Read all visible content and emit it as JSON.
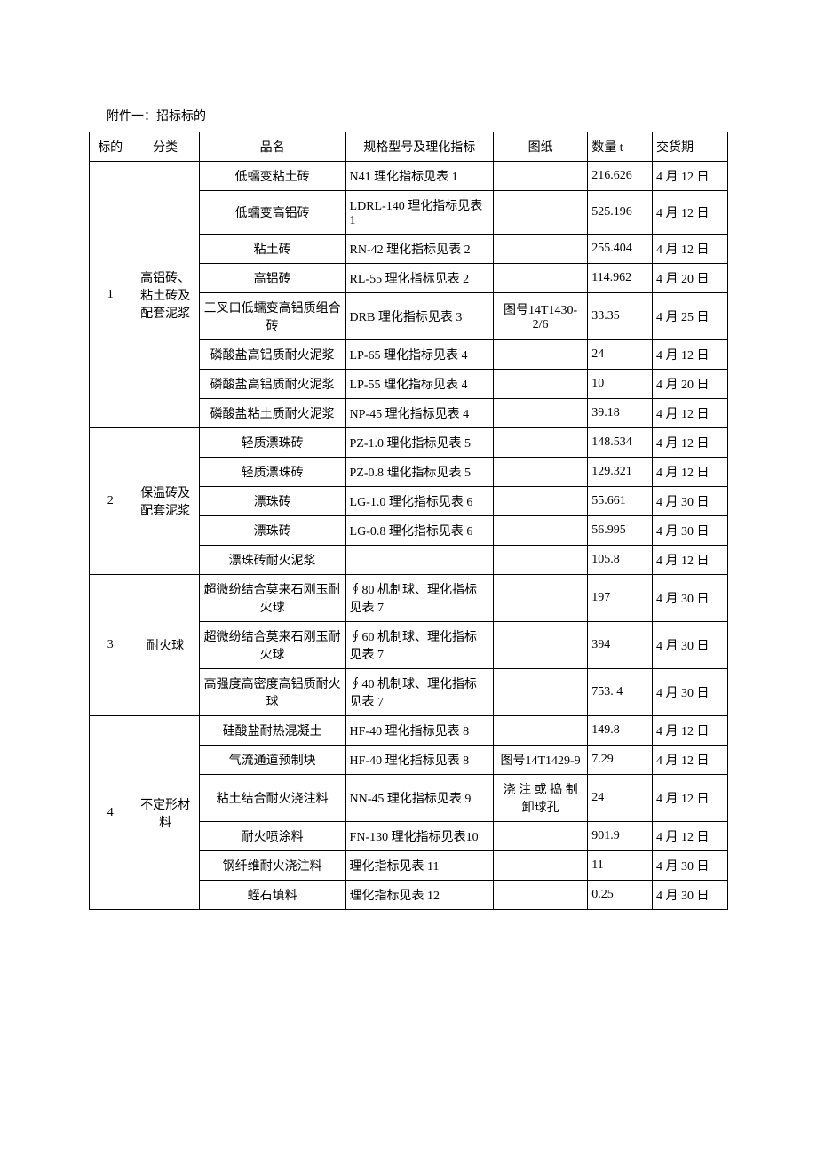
{
  "title": "附件一：招标标的",
  "headers": {
    "bid": "标的",
    "category": "分类",
    "name": "品名",
    "spec": "规格型号及理化指标",
    "drawing": "图纸",
    "qty": "数量 t",
    "date": "交货期"
  },
  "groups": [
    {
      "bid": "1",
      "category": "高铝砖、粘土砖及配套泥浆",
      "rows": [
        {
          "name": "低蠕变粘土砖",
          "spec": "N41 理化指标见表 1",
          "drawing": "",
          "qty": "216.626",
          "date": "4 月 12 日"
        },
        {
          "name": "低蠕变高铝砖",
          "spec": "LDRL-140 理化指标见表 1",
          "drawing": "",
          "qty": "525.196",
          "date": "4 月 12 日"
        },
        {
          "name": "粘土砖",
          "spec": "RN-42 理化指标见表 2",
          "drawing": "",
          "qty": "255.404",
          "date": "4 月 12 日"
        },
        {
          "name": "高铝砖",
          "spec": "RL-55 理化指标见表 2",
          "drawing": "",
          "qty": "114.962",
          "date": "4 月 20 日"
        },
        {
          "name": "三叉口低蠕变高铝质组合砖",
          "spec": "DRB 理化指标见表 3",
          "drawing": "图号14T1430-2/6",
          "qty": "33.35",
          "date": "4 月 25 日"
        },
        {
          "name": "磷酸盐高铝质耐火泥浆",
          "spec": "LP-65 理化指标见表 4",
          "drawing": "",
          "qty": "24",
          "date": "4 月 12 日"
        },
        {
          "name": "磷酸盐高铝质耐火泥浆",
          "spec": "LP-55 理化指标见表 4",
          "drawing": "",
          "qty": "10",
          "date": "4 月 20 日"
        },
        {
          "name": "磷酸盐粘土质耐火泥浆",
          "spec": "NP-45 理化指标见表 4",
          "drawing": "",
          "qty": "39.18",
          "date": "4 月 12 日"
        }
      ]
    },
    {
      "bid": "2",
      "category": "保温砖及配套泥浆",
      "rows": [
        {
          "name": "轻质漂珠砖",
          "spec": "PZ-1.0 理化指标见表 5",
          "drawing": "",
          "qty": "148.534",
          "date": "4 月 12 日"
        },
        {
          "name": "轻质漂珠砖",
          "spec": "PZ-0.8 理化指标见表 5",
          "drawing": "",
          "qty": "129.321",
          "date": "4 月 12 日"
        },
        {
          "name": "漂珠砖",
          "spec": "LG-1.0 理化指标见表 6",
          "drawing": "",
          "qty": "55.661",
          "date": "4 月 30 日"
        },
        {
          "name": "漂珠砖",
          "spec": "LG-0.8 理化指标见表 6",
          "drawing": "",
          "qty": "56.995",
          "date": "4 月 30 日"
        },
        {
          "name": "漂珠砖耐火泥浆",
          "spec": "",
          "drawing": "",
          "qty": "105.8",
          "date": "4 月 12 日"
        }
      ]
    },
    {
      "bid": "3",
      "category": "耐火球",
      "rows": [
        {
          "name": "超微纷结合莫来石刚玉耐火球",
          "spec": "∮80 机制球、理化指标见表 7",
          "drawing": "",
          "qty": "197",
          "date": "4 月 30 日"
        },
        {
          "name": "超微纷结合莫来石刚玉耐火球",
          "spec": "∮60 机制球、理化指标见表 7",
          "drawing": "",
          "qty": "394",
          "date": "4 月 30 日"
        },
        {
          "name": "高强度高密度高铝质耐火球",
          "spec": "∮40 机制球、理化指标见表 7",
          "drawing": "",
          "qty": "753. 4",
          "date": "4 月 30 日"
        }
      ]
    },
    {
      "bid": "4",
      "category": "不定形材料",
      "rows": [
        {
          "name": "硅酸盐耐热混凝土",
          "spec": "HF-40 理化指标见表 8",
          "drawing": "",
          "qty": "149.8",
          "date": "4 月 12 日"
        },
        {
          "name": "气流通道预制块",
          "spec": "HF-40 理化指标见表 8",
          "drawing": "图号14T1429-9",
          "qty": "7.29",
          "date": "4 月 12 日"
        },
        {
          "name": "粘土结合耐火浇注料",
          "spec": "NN-45 理化指标见表 9",
          "drawing": "浇 注 或 捣 制卸球孔",
          "qty": "24",
          "date": "4 月 12 日"
        },
        {
          "name": "耐火喷涂料",
          "spec": "FN-130 理化指标见表10",
          "drawing": "",
          "qty": "901.9",
          "date": "4 月 12 日"
        },
        {
          "name": "钢纤维耐火浇注料",
          "spec": "理化指标见表 11",
          "drawing": "",
          "qty": "11",
          "date": "4 月 30 日"
        },
        {
          "name": "蛭石填料",
          "spec": "理化指标见表 12",
          "drawing": "",
          "qty": "0.25",
          "date": "4 月 30 日"
        }
      ]
    }
  ]
}
